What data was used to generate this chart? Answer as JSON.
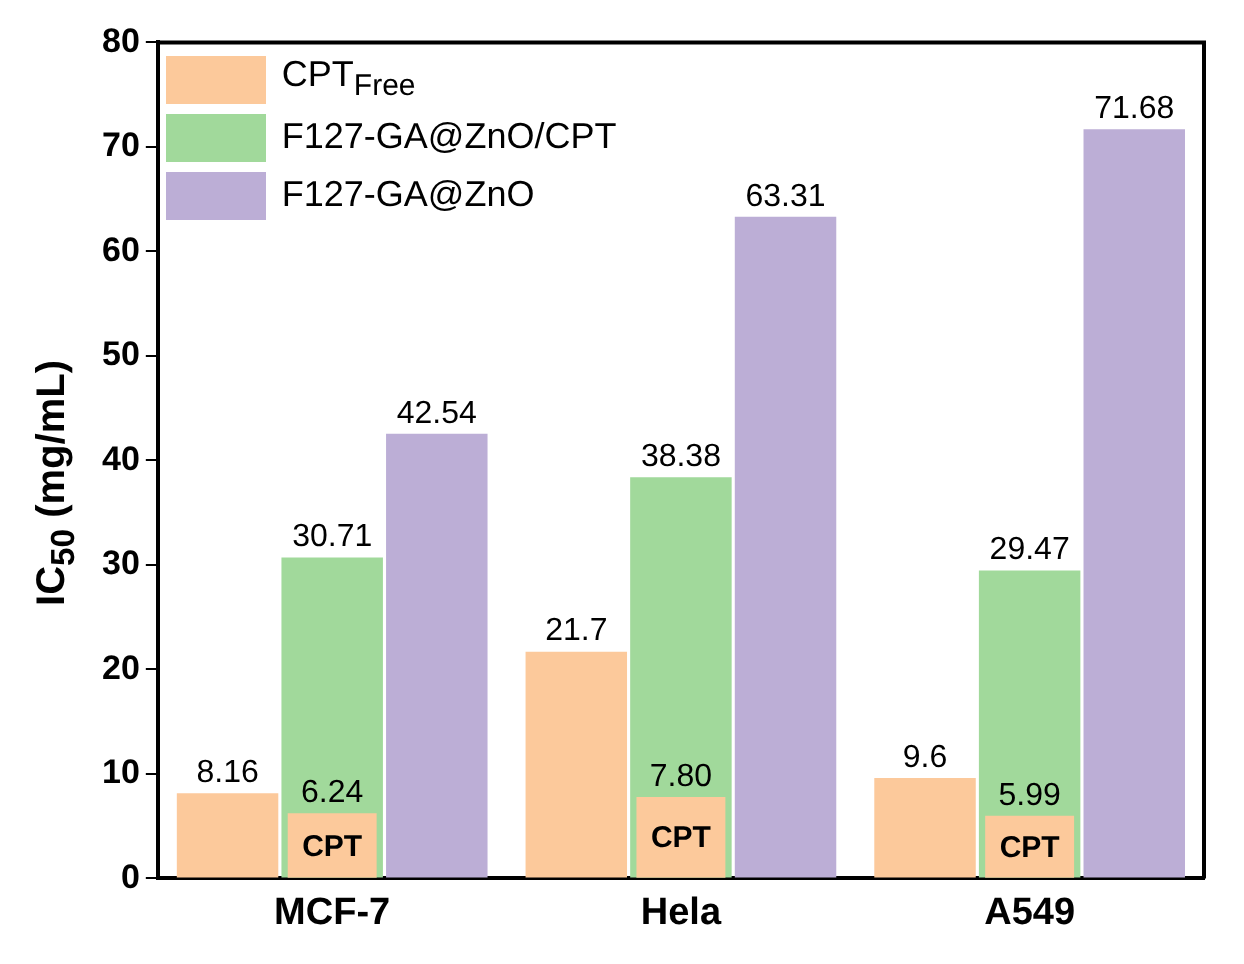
{
  "chart_data": {
    "type": "bar",
    "ylabel": "IC$_{50}$ (mg/mL)",
    "categories": [
      "MCF-7",
      "Hela",
      "A549"
    ],
    "series": [
      {
        "name": "CPT$_{Free}$",
        "color": "#fcc99b",
        "values": [
          8.16,
          21.7,
          9.6
        ],
        "value_labels": [
          "8.16",
          "21.7",
          "9.6"
        ]
      },
      {
        "name": "F127-GA@ZnO/CPT",
        "color": "#a1d99b",
        "values": [
          30.71,
          38.38,
          29.47
        ],
        "value_labels": [
          "30.71",
          "38.38",
          "29.47"
        ]
      },
      {
        "name": "F127-GA@ZnO",
        "color": "#bcaed6",
        "values": [
          42.54,
          63.31,
          71.68
        ],
        "value_labels": [
          "42.54",
          "63.31",
          "71.68"
        ]
      },
      {
        "name": "CPT",
        "color": "#fcc99b",
        "values": [
          6.24,
          7.8,
          5.99
        ],
        "value_labels": [
          "6.24",
          "7.80",
          "5.99"
        ]
      }
    ],
    "ylim": [
      0,
      80
    ],
    "yticks": [
      0,
      10,
      20,
      30,
      40,
      50,
      60,
      70,
      80
    ],
    "legend": "top left",
    "grid": false
  }
}
